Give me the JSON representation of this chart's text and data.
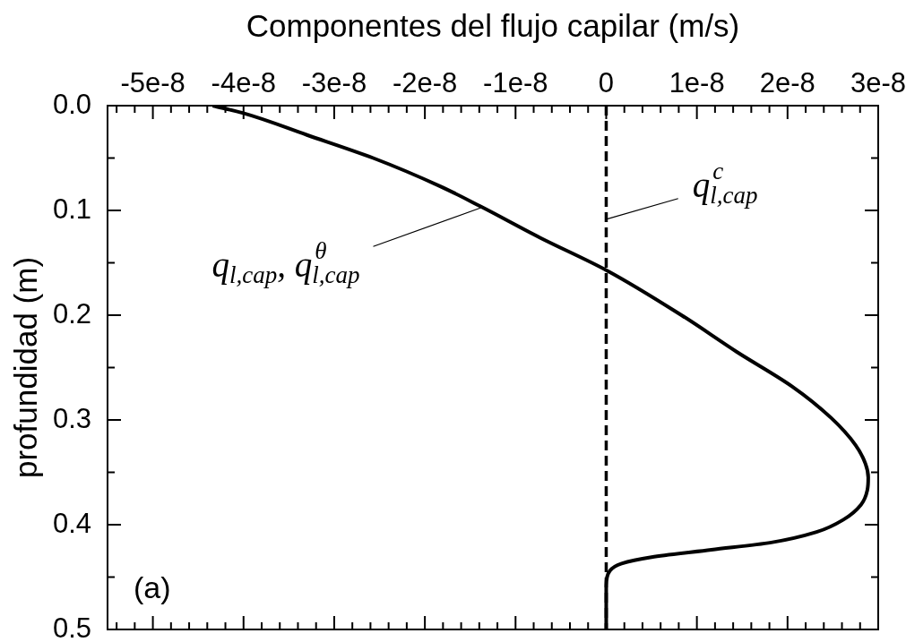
{
  "chart_data": {
    "type": "line",
    "xlabel": "Componentes del flujo capilar (m/s)",
    "ylabel": "profundidad (m)",
    "xlim": [
      -5.5e-08,
      3e-08
    ],
    "xticks": [
      {
        "value": -5.4e-08,
        "label": null
      },
      {
        "value": -5.2e-08,
        "label": null
      },
      {
        "value": -5e-08,
        "label": "-5e-8"
      },
      {
        "value": -4.8e-08,
        "label": null
      },
      {
        "value": -4.6e-08,
        "label": null
      },
      {
        "value": -4.4e-08,
        "label": null
      },
      {
        "value": -4.2e-08,
        "label": null
      },
      {
        "value": -4e-08,
        "label": "-4e-8"
      },
      {
        "value": -3.8e-08,
        "label": null
      },
      {
        "value": -3.6e-08,
        "label": null
      },
      {
        "value": -3.4e-08,
        "label": null
      },
      {
        "value": -3.2e-08,
        "label": null
      },
      {
        "value": -3e-08,
        "label": "-3e-8"
      },
      {
        "value": -2.8e-08,
        "label": null
      },
      {
        "value": -2.6e-08,
        "label": null
      },
      {
        "value": -2.4e-08,
        "label": null
      },
      {
        "value": -2.2e-08,
        "label": null
      },
      {
        "value": -2e-08,
        "label": "-2e-8"
      },
      {
        "value": -1.8e-08,
        "label": null
      },
      {
        "value": -1.6e-08,
        "label": null
      },
      {
        "value": -1.4e-08,
        "label": null
      },
      {
        "value": -1.2e-08,
        "label": null
      },
      {
        "value": -1e-08,
        "label": "-1e-8"
      },
      {
        "value": -8e-09,
        "label": null
      },
      {
        "value": -6e-09,
        "label": null
      },
      {
        "value": -4e-09,
        "label": null
      },
      {
        "value": -2e-09,
        "label": null
      },
      0,
      {
        "value": 2e-09,
        "label": null
      },
      {
        "value": 4e-09,
        "label": null
      },
      {
        "value": 6e-09,
        "label": null
      },
      {
        "value": 8e-09,
        "label": null
      },
      {
        "value": 1e-08,
        "label": "1e-8"
      },
      {
        "value": 1.2e-08,
        "label": null
      },
      {
        "value": 1.4e-08,
        "label": null
      },
      {
        "value": 1.6e-08,
        "label": null
      },
      {
        "value": 1.8e-08,
        "label": null
      },
      {
        "value": 2e-08,
        "label": "2e-8"
      },
      {
        "value": 2.2e-08,
        "label": null
      },
      {
        "value": 2.4e-08,
        "label": null
      },
      {
        "value": 2.6e-08,
        "label": null
      },
      {
        "value": 2.8e-08,
        "label": null
      },
      {
        "value": 3e-08,
        "label": "3e-8"
      }
    ],
    "ylim": [
      0.5,
      0
    ],
    "yticks": [
      {
        "value": 0,
        "label": "0.0"
      },
      {
        "value": 0.05,
        "label": null
      },
      0.1,
      {
        "value": 0.15,
        "label": null
      },
      0.2,
      {
        "value": 0.25,
        "label": null
      },
      0.3,
      {
        "value": 0.35,
        "label": null
      },
      0.4,
      {
        "value": 0.45,
        "label": null
      },
      0.5
    ],
    "marker": "none",
    "series": [
      {
        "name": "q$_{l,cap}$, q$^{θ}$$_{l,cap}$",
        "color": "#000000",
        "line_style": "solid",
        "x": [
          -4.34e-08,
          -4.01e-08,
          -3.3e-08,
          -2.57e-08,
          -1.83e-08,
          -1.39e-08,
          -7.3e-09,
          0,
          8.3e-09,
          1.44e-08,
          2.05e-08,
          2.48e-08,
          2.75e-08,
          2.86e-08,
          2.89e-08,
          2.88e-08,
          2.81e-08,
          2.62e-08,
          2.32e-08,
          1.82e-08,
          1.16e-08,
          5e-09,
          1.7e-09,
          4e-10,
          0,
          0
        ],
        "values": [
          0,
          0.007,
          0.028,
          0.05,
          0.077,
          0.096,
          0.126,
          0.157,
          0.2,
          0.235,
          0.268,
          0.298,
          0.324,
          0.342,
          0.355,
          0.367,
          0.381,
          0.395,
          0.407,
          0.417,
          0.424,
          0.431,
          0.437,
          0.444,
          0.458,
          0.5
        ]
      }
    ],
    "ref_lines": [
      {
        "axis": "x",
        "value": 0,
        "label": "q$^{c}$$_{l,cap}$",
        "line_style": "dashed",
        "color": "#000000"
      }
    ],
    "annotations": [
      "(a)"
    ]
  }
}
